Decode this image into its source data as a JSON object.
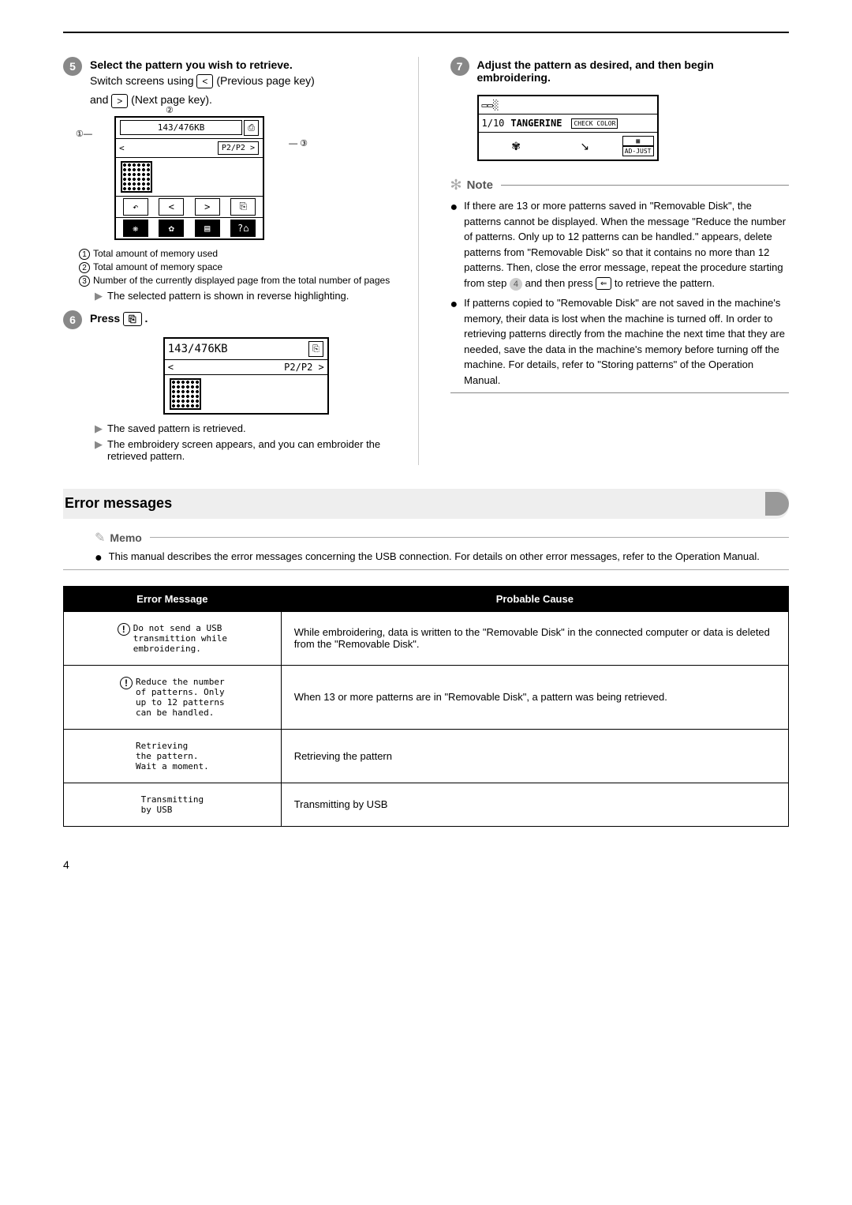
{
  "step5": {
    "title": "Select the pattern you wish to retrieve.",
    "line1_a": "Switch screens using ",
    "line1_key1": "<",
    "line1_b": " (Previous page key)",
    "line2_a": "and ",
    "line2_key2": ">",
    "line2_b": " (Next page key).",
    "lcd_mem": "143/476KB",
    "lcd_page": "P2/P2 >",
    "callouts": {
      "c1": "Total amount of memory used",
      "c2": "Total amount of memory space",
      "c3": "Number of the currently displayed page from the total number of pages"
    },
    "result": "The selected pattern is shown in reverse highlighting."
  },
  "step6": {
    "title_a": "Press ",
    "title_b": ".",
    "lcd_mem": "143/476KB",
    "lcd_page": "P2/P2 >",
    "result1": "The saved pattern is retrieved.",
    "result2": "The embroidery screen appears, and you can embroider the retrieved pattern."
  },
  "step7": {
    "title": "Adjust the pattern as desired, and then begin embroidering.",
    "lcd_count": "1/10",
    "lcd_color": "TANGERINE",
    "lcd_btn1": "CHECK COLOR",
    "lcd_btn2": "AD-JUST"
  },
  "note": {
    "title": "Note",
    "item1_a": "If there are 13 or more patterns saved in \"Removable Disk\", the patterns cannot be displayed. When the message \"Reduce the number of patterns. Only up to 12 patterns can be handled.\" appears, delete patterns from \"Removable Disk\" so that it contains no more than 12 patterns. Then, close the error message, repeat the procedure starting from step ",
    "item1_b": " and then press ",
    "item1_c": " to retrieve the pattern.",
    "item2": "If patterns copied to \"Removable Disk\" are not saved in the machine's memory, their data is lost when the machine is turned off. In order to retrieving patterns directly from the machine the next time that they are needed, save the data in the machine's memory before turning off the machine. For details, refer to \"Storing patterns\" of the Operation Manual."
  },
  "error_section": {
    "title": "Error messages"
  },
  "memo": {
    "title": "Memo",
    "text": "This manual describes the error messages concerning the USB connection. For details on other error messages, refer to the Operation Manual."
  },
  "table": {
    "h1": "Error Message",
    "h2": "Probable Cause",
    "rows": [
      {
        "msg": "Do not send a USB\ntransmittion while\nembroidering.",
        "warn": true,
        "cause": "While embroidering, data is written to the \"Removable Disk\" in the connected computer or data is deleted from the \"Removable Disk\"."
      },
      {
        "msg": "Reduce the number\nof patterns. Only\nup to 12 patterns\ncan be handled.",
        "warn": true,
        "cause": "When 13 or more patterns are in \"Removable Disk\", a pattern was being retrieved."
      },
      {
        "msg": "Retrieving\nthe pattern.\nWait a moment.",
        "warn": false,
        "cause": "Retrieving the pattern"
      },
      {
        "msg": "Transmitting\nby USB",
        "warn": false,
        "cause": "Transmitting by USB"
      }
    ]
  },
  "page_num": "4"
}
